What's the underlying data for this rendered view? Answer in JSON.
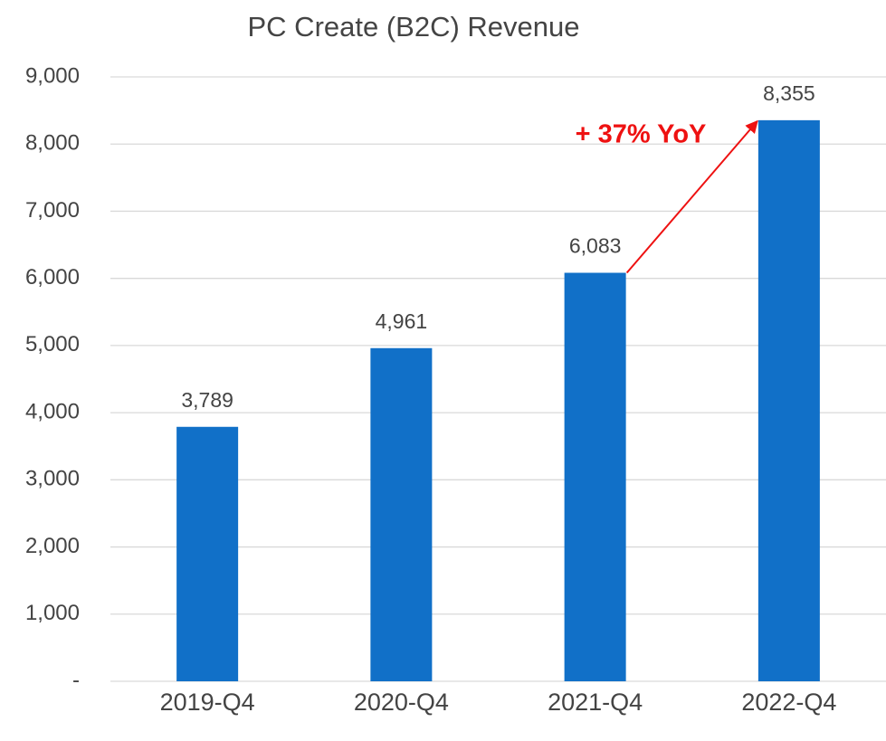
{
  "chart_data": {
    "type": "bar",
    "title": "PC Create (B2C) Revenue",
    "categories": [
      "2019-Q4",
      "2020-Q4",
      "2021-Q4",
      "2022-Q4"
    ],
    "values": [
      3789,
      4961,
      6083,
      8355
    ],
    "value_labels": [
      "3,789",
      "4,961",
      "6,083",
      "8,355"
    ],
    "color": "#1170c8",
    "ylim": [
      0,
      9000
    ],
    "yticks": [
      {
        "value": 0,
        "label": "-"
      },
      {
        "value": 1000,
        "label": "1,000"
      },
      {
        "value": 2000,
        "label": "2,000"
      },
      {
        "value": 3000,
        "label": "3,000"
      },
      {
        "value": 4000,
        "label": "4,000"
      },
      {
        "value": 5000,
        "label": "5,000"
      },
      {
        "value": 6000,
        "label": "6,000"
      },
      {
        "value": 7000,
        "label": "7,000"
      },
      {
        "value": 8000,
        "label": "8,000"
      },
      {
        "value": 9000,
        "label": "9,000"
      }
    ],
    "grid": true,
    "annotation": "+ 37% YoY",
    "annotation_color": "#ee1111"
  }
}
